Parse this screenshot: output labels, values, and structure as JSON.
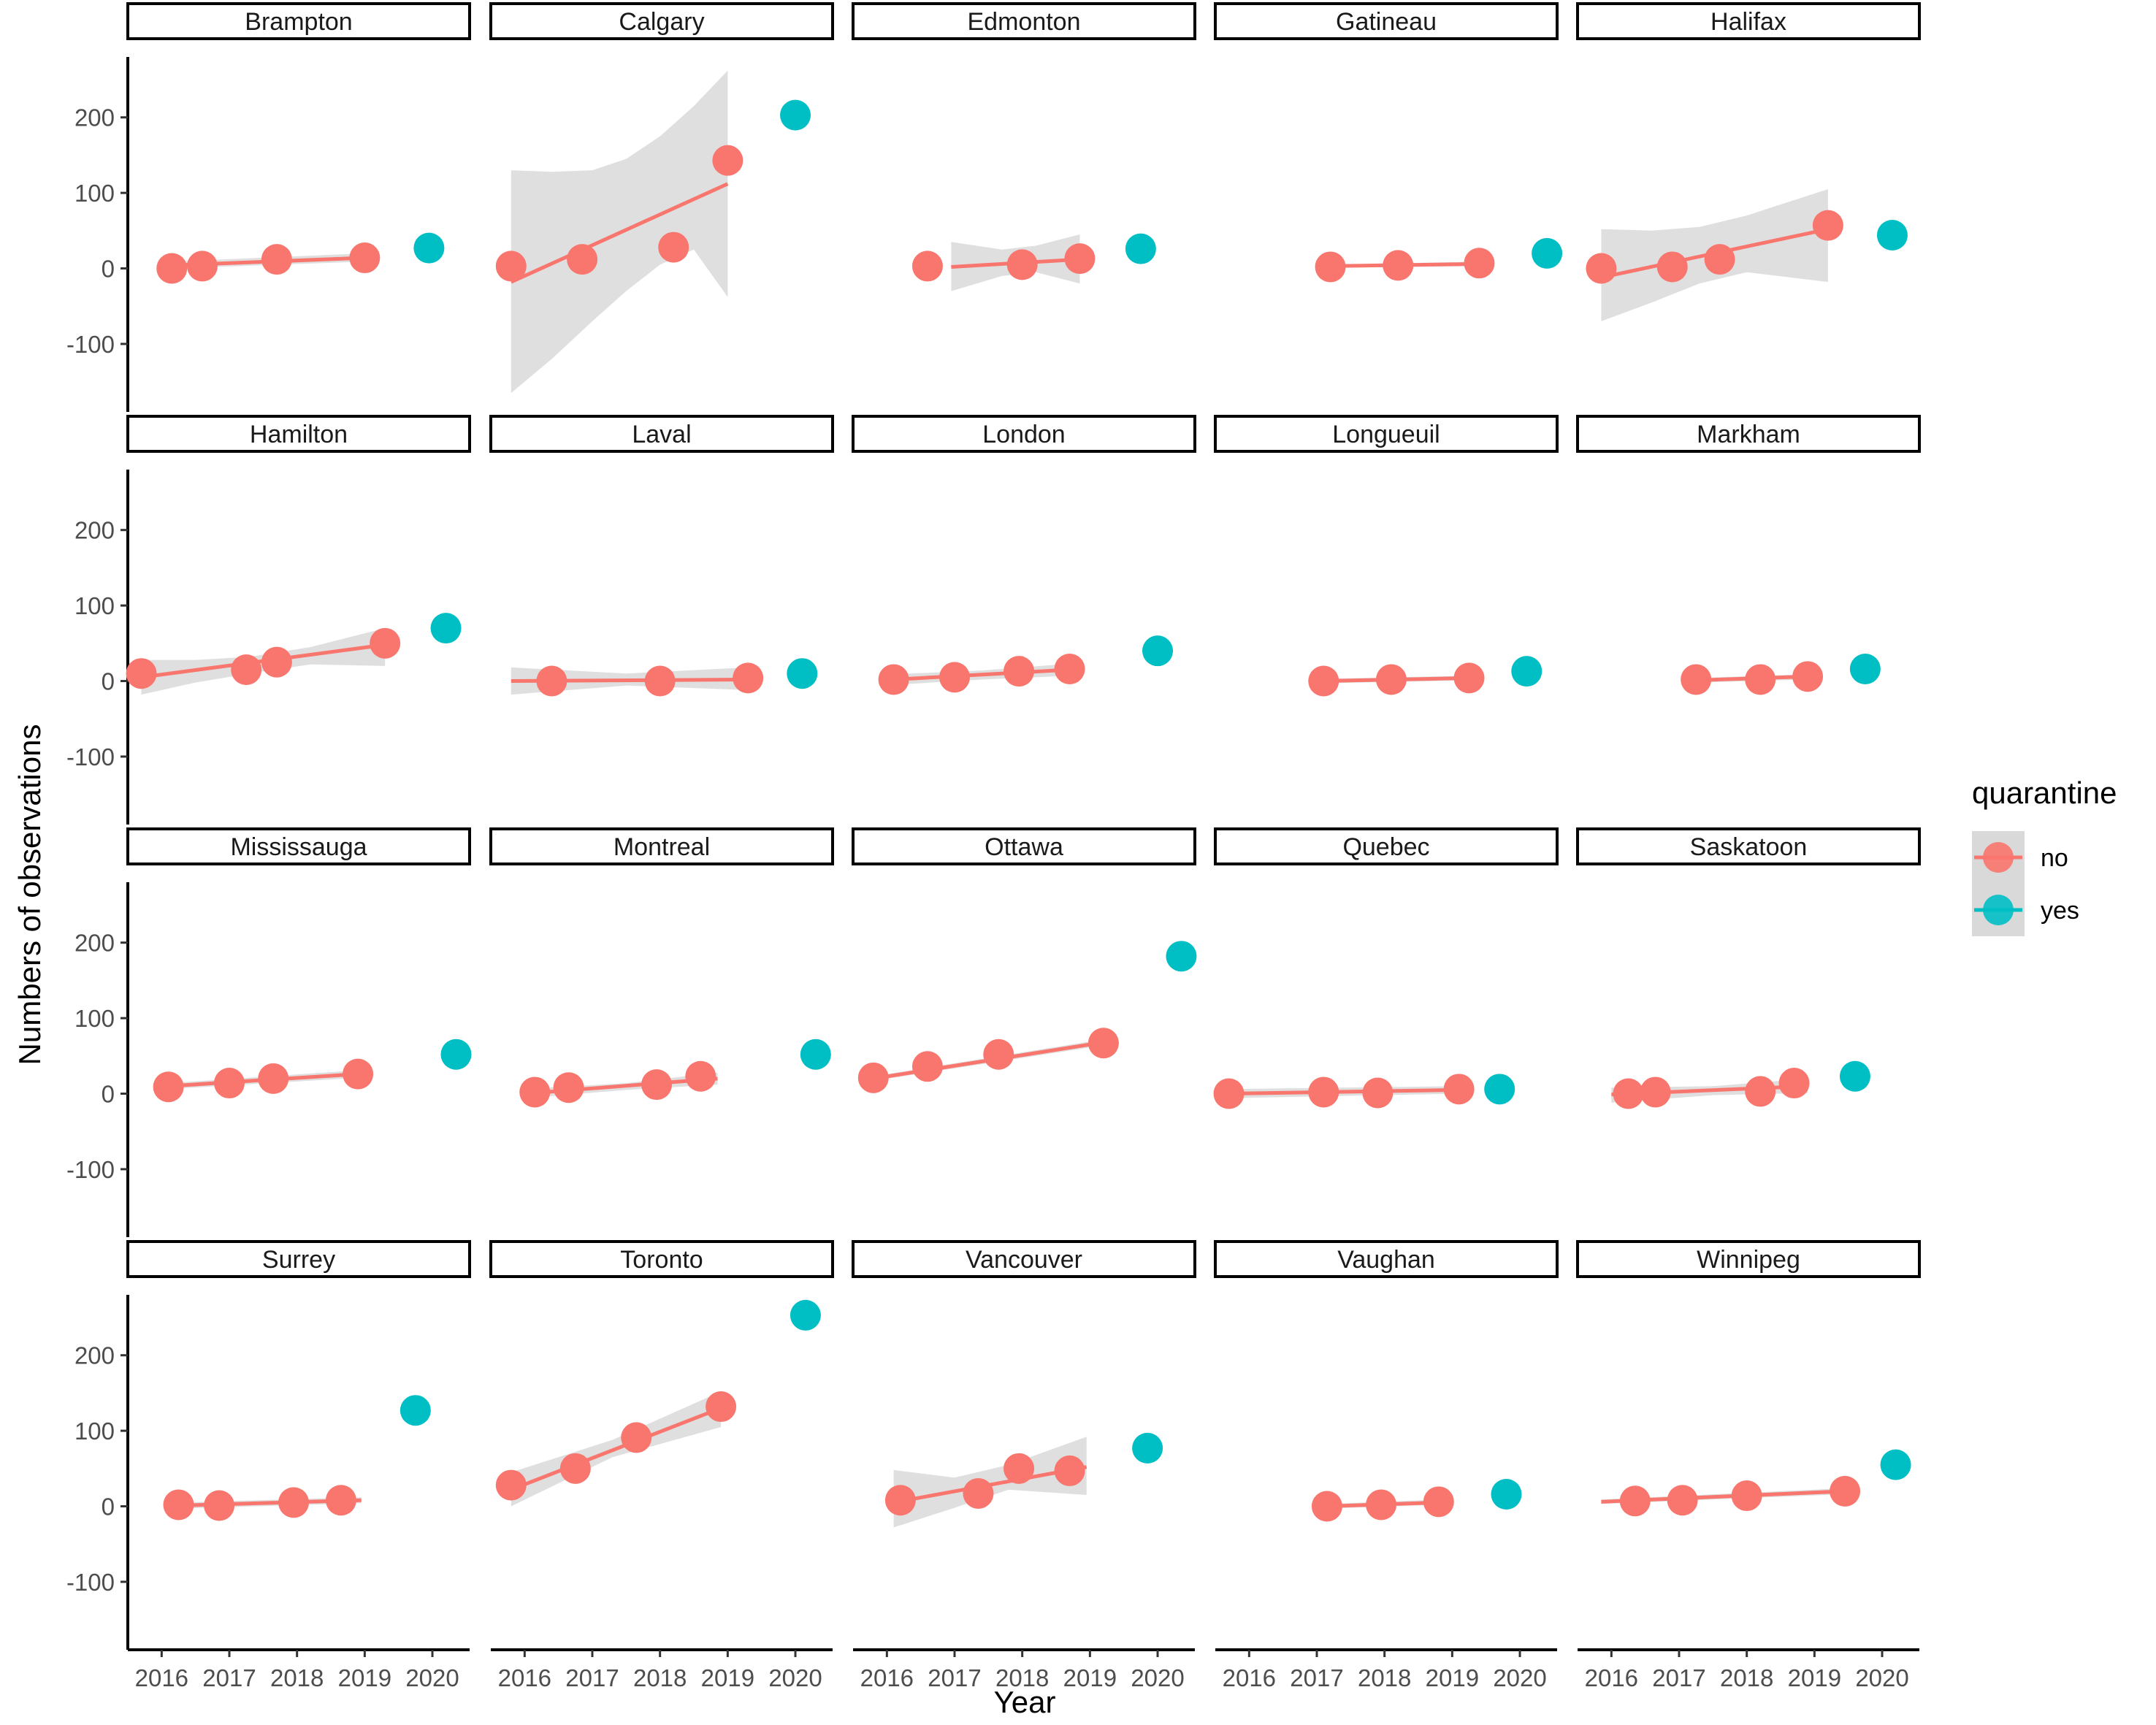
{
  "chart_data": {
    "type": "scatter",
    "facet_by": "city",
    "xlabel": "Year",
    "ylabel": "Numbers of observations",
    "x_ticks": [
      2016,
      2017,
      2018,
      2019,
      2020
    ],
    "y_ticks": [
      -100,
      0,
      100,
      200
    ],
    "xlim": [
      2015.5,
      2020.55
    ],
    "ylim": [
      -190,
      280
    ],
    "legend": {
      "title": "quarantine",
      "position": "right",
      "entries": [
        {
          "label": "no",
          "color": "#F8766D"
        },
        {
          "label": "yes",
          "color": "#00BFC4"
        }
      ]
    },
    "colors": {
      "no": "#F8766D",
      "yes": "#00BFC4",
      "ribbon": "#d9d9d9"
    },
    "grid": false,
    "smooth": "lm with confidence ribbon, fitted to quarantine = no points",
    "facets": [
      {
        "city": "Brampton",
        "no": [
          [
            2016.15,
            0
          ],
          [
            2016.6,
            3
          ],
          [
            2017.7,
            12
          ],
          [
            2019.0,
            14
          ]
        ],
        "yes": [
          [
            2019.95,
            27
          ]
        ],
        "fit": [
          [
            2016.15,
            4
          ],
          [
            2019.0,
            14
          ]
        ],
        "ribbon": [
          [
            2016.15,
            0,
            9
          ],
          [
            2019.0,
            9,
            20
          ]
        ]
      },
      {
        "city": "Calgary",
        "no": [
          [
            2015.8,
            3
          ],
          [
            2016.85,
            12
          ],
          [
            2018.2,
            28
          ],
          [
            2019.0,
            143
          ]
        ],
        "yes": [
          [
            2020.0,
            203
          ]
        ],
        "fit": [
          [
            2015.8,
            -18
          ],
          [
            2019.0,
            112
          ]
        ],
        "ribbon": [
          [
            2015.8,
            -165,
            130
          ],
          [
            2016.4,
            -120,
            128
          ],
          [
            2017.0,
            -70,
            130
          ],
          [
            2017.5,
            -30,
            145
          ],
          [
            2018.0,
            5,
            175
          ],
          [
            2018.5,
            25,
            215
          ],
          [
            2019.0,
            -38,
            262
          ]
        ]
      },
      {
        "city": "Edmonton",
        "no": [
          [
            2016.6,
            3
          ],
          [
            2018.0,
            5
          ],
          [
            2018.85,
            13
          ]
        ],
        "yes": [
          [
            2019.75,
            26
          ]
        ],
        "fit": [
          [
            2016.95,
            2
          ],
          [
            2018.85,
            12
          ]
        ],
        "ribbon": [
          [
            2016.95,
            -30,
            35
          ],
          [
            2017.7,
            -10,
            25
          ],
          [
            2018.2,
            -5,
            30
          ],
          [
            2018.85,
            -20,
            45
          ]
        ]
      },
      {
        "city": "Gatineau",
        "no": [
          [
            2017.2,
            2
          ],
          [
            2018.2,
            4
          ],
          [
            2019.4,
            7
          ]
        ],
        "yes": [
          [
            2020.4,
            20
          ]
        ],
        "fit": [
          [
            2017.2,
            3
          ],
          [
            2019.4,
            6
          ]
        ],
        "ribbon": [
          [
            2017.2,
            1,
            5
          ],
          [
            2019.4,
            3,
            9
          ]
        ]
      },
      {
        "city": "Halifax",
        "no": [
          [
            2015.85,
            0
          ],
          [
            2016.9,
            2
          ],
          [
            2017.6,
            12
          ],
          [
            2019.2,
            57
          ]
        ],
        "yes": [
          [
            2020.15,
            44
          ]
        ],
        "fit": [
          [
            2015.85,
            -12
          ],
          [
            2019.2,
            52
          ]
        ],
        "ribbon": [
          [
            2015.85,
            -70,
            52
          ],
          [
            2016.6,
            -45,
            50
          ],
          [
            2017.3,
            -20,
            55
          ],
          [
            2018.0,
            -5,
            70
          ],
          [
            2019.2,
            -18,
            105
          ]
        ]
      },
      {
        "city": "Hamilton",
        "no": [
          [
            2015.7,
            10
          ],
          [
            2017.25,
            15
          ],
          [
            2017.7,
            25
          ],
          [
            2019.3,
            50
          ]
        ],
        "yes": [
          [
            2020.2,
            70
          ]
        ],
        "fit": [
          [
            2015.7,
            5
          ],
          [
            2019.3,
            48
          ]
        ],
        "ribbon": [
          [
            2015.7,
            -18,
            28
          ],
          [
            2016.5,
            -2,
            28
          ],
          [
            2017.3,
            10,
            32
          ],
          [
            2018.2,
            22,
            45
          ],
          [
            2019.3,
            20,
            70
          ]
        ]
      },
      {
        "city": "Laval",
        "no": [
          [
            2016.4,
            0
          ],
          [
            2018.0,
            0
          ],
          [
            2019.3,
            4
          ]
        ],
        "yes": [
          [
            2020.1,
            10
          ]
        ],
        "fit": [
          [
            2015.8,
            0
          ],
          [
            2019.3,
            2
          ]
        ],
        "ribbon": [
          [
            2015.8,
            -18,
            18
          ],
          [
            2017.5,
            -6,
            10
          ],
          [
            2019.3,
            -12,
            18
          ]
        ]
      },
      {
        "city": "London",
        "no": [
          [
            2016.1,
            2
          ],
          [
            2017.0,
            5
          ],
          [
            2017.95,
            13
          ],
          [
            2018.7,
            16
          ]
        ],
        "yes": [
          [
            2020.0,
            40
          ]
        ],
        "fit": [
          [
            2016.1,
            2
          ],
          [
            2018.7,
            15
          ]
        ],
        "ribbon": [
          [
            2016.1,
            -5,
            9
          ],
          [
            2017.4,
            2,
            14
          ],
          [
            2018.7,
            7,
            23
          ]
        ]
      },
      {
        "city": "Longueuil",
        "no": [
          [
            2017.1,
            0
          ],
          [
            2018.1,
            2
          ],
          [
            2019.25,
            4
          ]
        ],
        "yes": [
          [
            2020.1,
            13
          ]
        ],
        "fit": [
          [
            2017.1,
            0
          ],
          [
            2019.25,
            4
          ]
        ],
        "ribbon": [
          [
            2017.1,
            -3,
            3
          ],
          [
            2019.25,
            1,
            7
          ]
        ]
      },
      {
        "city": "Markham",
        "no": [
          [
            2017.25,
            2
          ],
          [
            2018.2,
            2
          ],
          [
            2018.9,
            6
          ]
        ],
        "yes": [
          [
            2019.75,
            16
          ]
        ],
        "fit": [
          [
            2017.25,
            1
          ],
          [
            2018.9,
            6
          ]
        ],
        "ribbon": [
          [
            2017.25,
            -2,
            4
          ],
          [
            2018.9,
            2,
            9
          ]
        ]
      },
      {
        "city": "Mississauga",
        "no": [
          [
            2016.1,
            9
          ],
          [
            2017.0,
            14
          ],
          [
            2017.65,
            20
          ],
          [
            2018.9,
            26
          ]
        ],
        "yes": [
          [
            2020.35,
            52
          ]
        ],
        "fit": [
          [
            2016.1,
            10
          ],
          [
            2018.9,
            26
          ]
        ],
        "ribbon": [
          [
            2016.1,
            6,
            14
          ],
          [
            2018.9,
            21,
            31
          ]
        ]
      },
      {
        "city": "Montreal",
        "no": [
          [
            2016.15,
            2
          ],
          [
            2016.65,
            8
          ],
          [
            2017.95,
            12
          ],
          [
            2018.6,
            23
          ]
        ],
        "yes": [
          [
            2020.3,
            52
          ]
        ],
        "fit": [
          [
            2016.15,
            1
          ],
          [
            2018.85,
            20
          ]
        ],
        "ribbon": [
          [
            2016.15,
            -5,
            7
          ],
          [
            2017.5,
            5,
            14
          ],
          [
            2018.85,
            12,
            28
          ]
        ]
      },
      {
        "city": "Ottawa",
        "no": [
          [
            2015.8,
            21
          ],
          [
            2016.6,
            36
          ],
          [
            2017.65,
            52
          ],
          [
            2019.2,
            67
          ]
        ],
        "yes": [
          [
            2020.35,
            182
          ]
        ],
        "fit": [
          [
            2015.8,
            20
          ],
          [
            2019.2,
            68
          ]
        ],
        "ribbon": [
          [
            2015.8,
            17,
            23
          ],
          [
            2019.2,
            64,
            72
          ]
        ]
      },
      {
        "city": "Quebec",
        "no": [
          [
            2015.7,
            0
          ],
          [
            2017.1,
            2
          ],
          [
            2017.9,
            1
          ],
          [
            2019.1,
            6
          ]
        ],
        "yes": [
          [
            2019.7,
            6
          ]
        ],
        "fit": [
          [
            2015.7,
            0
          ],
          [
            2019.1,
            5
          ]
        ],
        "ribbon": [
          [
            2015.7,
            -6,
            6
          ],
          [
            2019.1,
            0,
            10
          ]
        ]
      },
      {
        "city": "Saskatoon",
        "no": [
          [
            2016.25,
            0
          ],
          [
            2016.65,
            2
          ],
          [
            2018.2,
            3
          ],
          [
            2018.7,
            14
          ]
        ],
        "yes": [
          [
            2019.6,
            23
          ]
        ],
        "fit": [
          [
            2016.0,
            -1
          ],
          [
            2018.9,
            10
          ]
        ],
        "ribbon": [
          [
            2016.0,
            -12,
            8
          ],
          [
            2017.5,
            -2,
            10
          ],
          [
            2018.9,
            1,
            20
          ]
        ]
      },
      {
        "city": "Surrey",
        "no": [
          [
            2016.25,
            2
          ],
          [
            2016.85,
            1
          ],
          [
            2017.95,
            5
          ],
          [
            2018.65,
            8
          ]
        ],
        "yes": [
          [
            2019.75,
            127
          ]
        ],
        "fit": [
          [
            2016.25,
            1
          ],
          [
            2018.95,
            8
          ]
        ],
        "ribbon": [
          [
            2016.25,
            -3,
            5
          ],
          [
            2018.95,
            4,
            12
          ]
        ]
      },
      {
        "city": "Toronto",
        "no": [
          [
            2015.8,
            28
          ],
          [
            2016.75,
            50
          ],
          [
            2017.65,
            91
          ],
          [
            2018.9,
            132
          ]
        ],
        "yes": [
          [
            2020.15,
            253
          ]
        ],
        "fit": [
          [
            2015.8,
            22
          ],
          [
            2018.9,
            130
          ]
        ],
        "ribbon": [
          [
            2015.8,
            0,
            45
          ],
          [
            2017.3,
            65,
            88
          ],
          [
            2018.9,
            105,
            152
          ]
        ]
      },
      {
        "city": "Vancouver",
        "no": [
          [
            2016.2,
            8
          ],
          [
            2017.35,
            17
          ],
          [
            2017.95,
            50
          ],
          [
            2018.7,
            47
          ]
        ],
        "yes": [
          [
            2019.85,
            77
          ]
        ],
        "fit": [
          [
            2016.1,
            5
          ],
          [
            2018.95,
            52
          ]
        ],
        "ribbon": [
          [
            2016.1,
            -28,
            48
          ],
          [
            2017.0,
            -2,
            38
          ],
          [
            2017.8,
            22,
            55
          ],
          [
            2018.95,
            15,
            92
          ]
        ]
      },
      {
        "city": "Vaughan",
        "no": [
          [
            2017.15,
            0
          ],
          [
            2017.95,
            2
          ],
          [
            2018.8,
            6
          ]
        ],
        "yes": [
          [
            2019.8,
            16
          ]
        ],
        "fit": [
          [
            2017.15,
            0
          ],
          [
            2018.8,
            5
          ]
        ],
        "ribbon": [
          [
            2017.15,
            -3,
            3
          ],
          [
            2018.8,
            2,
            9
          ]
        ]
      },
      {
        "city": "Winnipeg",
        "no": [
          [
            2016.35,
            7
          ],
          [
            2017.05,
            8
          ],
          [
            2018.0,
            14
          ],
          [
            2019.45,
            20
          ]
        ],
        "yes": [
          [
            2020.2,
            55
          ]
        ],
        "fit": [
          [
            2015.85,
            6
          ],
          [
            2019.45,
            20
          ]
        ],
        "ribbon": [
          [
            2015.85,
            3,
            9
          ],
          [
            2019.45,
            16,
            24
          ]
        ]
      }
    ]
  }
}
